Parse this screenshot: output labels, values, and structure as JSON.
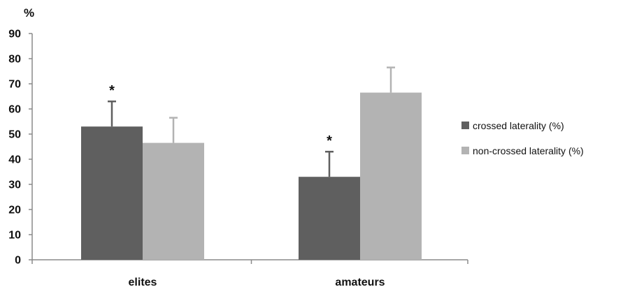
{
  "chart_data": {
    "type": "bar",
    "y_unit_label": "%",
    "categories": [
      "elites",
      "amateurs"
    ],
    "ylim": [
      0,
      90
    ],
    "yticks": [
      0,
      10,
      20,
      30,
      40,
      50,
      60,
      70,
      80,
      90
    ],
    "grid": false,
    "legend_position": "right",
    "series": [
      {
        "name": "crossed laterality (%)",
        "color": "#5f5f5f",
        "values": [
          53,
          33
        ],
        "errors": [
          10,
          10
        ],
        "annotations": [
          "*",
          "*"
        ]
      },
      {
        "name": "non-crossed laterality (%)",
        "color": "#b3b3b3",
        "values": [
          46.5,
          66.5
        ],
        "errors": [
          10,
          10
        ],
        "annotations": [
          "",
          ""
        ]
      }
    ]
  }
}
